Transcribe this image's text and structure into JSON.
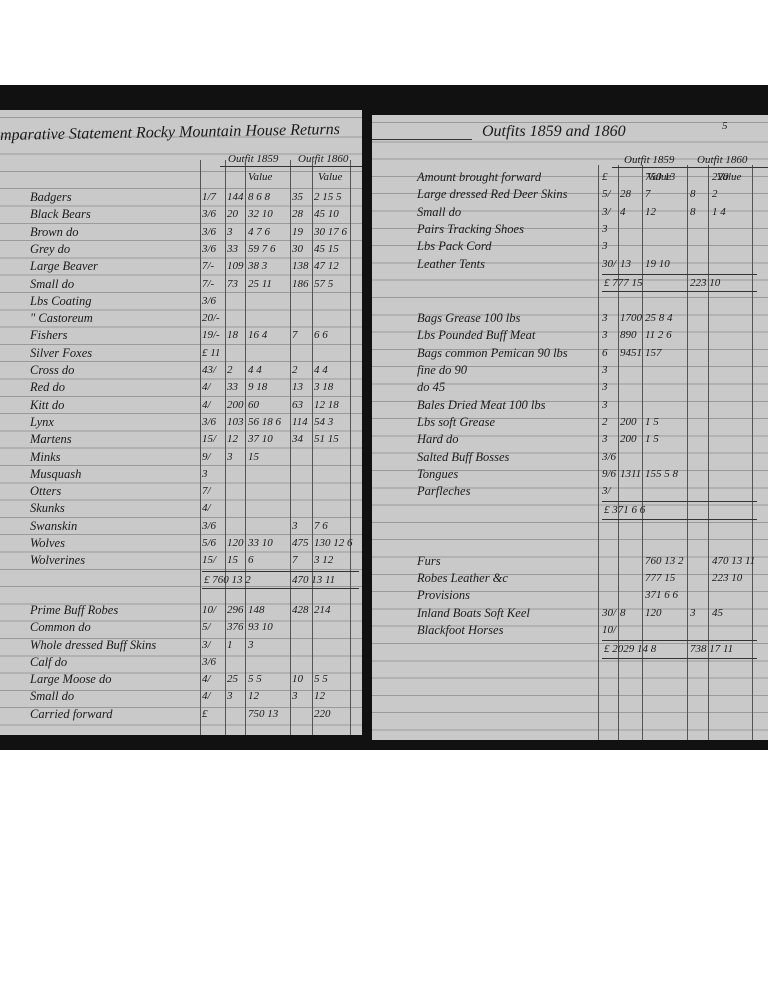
{
  "left": {
    "title": "mparative Statement Rocky Mountain House Returns",
    "columns": [
      "Outfit 1859",
      "Outfit 1860",
      "Value",
      "Value"
    ],
    "sections": [
      {
        "rows": [
          [
            "Badgers",
            "1/7",
            "144",
            "8 6 8",
            "35",
            "2 15 5"
          ],
          [
            "Black Bears",
            "3/6",
            "20",
            "32 10",
            "28",
            "45 10"
          ],
          [
            "Brown do",
            "3/6",
            "3",
            "4 7 6",
            "19",
            "30 17 6"
          ],
          [
            "Grey do",
            "3/6",
            "33",
            "59 7 6",
            "30",
            "45 15"
          ],
          [
            "Large Beaver",
            "7/-",
            "109",
            "38 3",
            "138",
            "47 12"
          ],
          [
            "Small do",
            "7/-",
            "73",
            "25 11",
            "186",
            "57 5"
          ],
          [
            "Lbs Coating",
            "3/6",
            null,
            null,
            null,
            null
          ],
          [
            "\" Castoreum",
            "20/-",
            null,
            null,
            null,
            null
          ],
          [
            "Fishers",
            "19/-",
            "18",
            "16 4",
            "7",
            "6 6"
          ],
          [
            "Silver Foxes",
            "£ 11",
            null,
            null,
            null,
            null
          ],
          [
            "Cross do",
            "43/",
            "2",
            "4 4",
            "2",
            "4 4"
          ],
          [
            "Red do",
            "4/",
            "33",
            "9 18",
            "13",
            "3 18"
          ],
          [
            "Kitt do",
            "4/",
            "200",
            "60",
            "63",
            "12 18"
          ],
          [
            "Lynx",
            "3/6",
            "103",
            "56 18 6",
            "114",
            "54 3"
          ],
          [
            "Martens",
            "15/",
            "12",
            "37 10",
            "34",
            "51 15"
          ],
          [
            "Minks",
            "9/",
            "3",
            "15",
            null,
            null
          ],
          [
            "Musquash",
            "3",
            null,
            null,
            null,
            null
          ],
          [
            "Otters",
            "7/",
            null,
            null,
            null,
            null
          ],
          [
            "Skunks",
            "4/",
            null,
            null,
            null,
            null
          ],
          [
            "Swanskin",
            "3/6",
            null,
            null,
            "3",
            "7 6"
          ],
          [
            "Wolves",
            "5/6",
            "120",
            "33 10",
            "475",
            "130 12 6"
          ],
          [
            "Wolverines",
            "15/",
            "15",
            "6",
            "7",
            "3 12"
          ]
        ],
        "total": [
          "£ 760 13 2",
          "470 13 11"
        ]
      },
      {
        "rows": [
          [
            "Prime Buff Robes",
            "10/",
            "296",
            "148",
            "428",
            "214"
          ],
          [
            "Common do",
            "5/",
            "376",
            "93 10",
            null,
            null
          ],
          [
            "Whole dressed Buff Skins",
            "3/",
            "1",
            "3",
            null,
            null
          ],
          [
            "Calf do",
            "3/6",
            null,
            null,
            null,
            null
          ],
          [
            "Large Moose do",
            "4/",
            "25",
            "5 5",
            "10",
            "5 5"
          ],
          [
            "Small do",
            "4/",
            "3",
            "12",
            "3",
            "12"
          ],
          [
            "Carried forward",
            "£",
            null,
            "750 13",
            null,
            "220"
          ]
        ]
      }
    ]
  },
  "right": {
    "title": "Outfits 1859 and 1860",
    "page": "5",
    "columns": [
      "Outfit 1859",
      "Outfit 1860",
      "Value",
      "Value"
    ],
    "sections": [
      {
        "rows": [
          [
            "Amount brought forward",
            "£",
            null,
            "750 13",
            null,
            "220"
          ],
          [
            "Large dressed Red Deer Skins",
            "5/",
            "28",
            "7",
            "8",
            "2"
          ],
          [
            "Small do",
            "3/",
            "4",
            "12",
            "8",
            "1 4"
          ],
          [
            "Pairs Tracking Shoes",
            "3",
            null,
            null,
            null,
            null
          ],
          [
            "Lbs Pack Cord",
            "3",
            null,
            null,
            null,
            null
          ],
          [
            "Leather Tents",
            "30/",
            "13",
            "19 10",
            null,
            null
          ]
        ],
        "total": [
          "£ 777 15",
          "223 10"
        ]
      },
      {
        "rows": [
          [
            "Bags Grease 100 lbs",
            "3",
            "1700",
            "25 8 4",
            null,
            null
          ],
          [
            "Lbs Pounded Buff Meat",
            "3",
            "890",
            "11 2 6",
            null,
            null
          ],
          [
            "Bags common Pemican 90 lbs",
            "6",
            "9451",
            "157",
            null,
            null
          ],
          [
            "fine do 90",
            "3",
            null,
            null,
            null,
            null
          ],
          [
            "do 45",
            "3",
            null,
            null,
            null,
            null
          ],
          [
            "Bales Dried Meat 100 lbs",
            "3",
            null,
            null,
            null,
            null
          ],
          [
            "Lbs soft Grease",
            "2",
            "200",
            "1 5",
            null,
            null
          ],
          [
            "Hard do",
            "3",
            "200",
            "1 5",
            null,
            null
          ],
          [
            "Salted Buff Bosses",
            "3/6",
            null,
            null,
            null,
            null
          ],
          [
            "Tongues",
            "9/6",
            "1311",
            "155 5 8",
            null,
            null
          ],
          [
            "Parfleches",
            "3/",
            null,
            null,
            null,
            null
          ]
        ],
        "total": [
          "£ 371 6 6",
          null
        ]
      },
      {
        "rows": [
          [
            "Furs",
            null,
            null,
            "760 13 2",
            null,
            "470 13 11"
          ],
          [
            "Robes Leather &c",
            null,
            null,
            "777 15",
            null,
            "223 10"
          ],
          [
            "Provisions",
            null,
            null,
            "371 6 6",
            null,
            null
          ],
          [
            "Inland Boats Soft Keel",
            "30/",
            "8",
            "120",
            "3",
            "45"
          ],
          [
            "Blackfoot Horses",
            "10/",
            null,
            null,
            null,
            null
          ]
        ],
        "total": [
          "£ 2029 14 8",
          "738 17 11"
        ]
      }
    ]
  }
}
